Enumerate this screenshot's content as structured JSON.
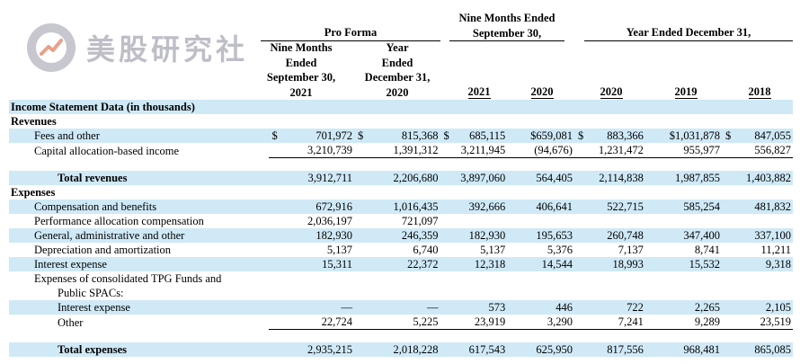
{
  "watermark": {
    "text": "美股研究社"
  },
  "headers": {
    "pro_forma": "Pro Forma",
    "nine_months_pf": [
      "Nine Months",
      "Ended",
      "September 30,",
      "2021"
    ],
    "year_pf": [
      "Year",
      "Ended",
      "December 31,",
      "2020"
    ],
    "nine_months_group": [
      "Nine Months Ended",
      "September 30,"
    ],
    "year_group": "Year Ended December 31,",
    "years": [
      "2021",
      "2020",
      "2020",
      "2019",
      "2018"
    ]
  },
  "table": {
    "section_title": "Income Statement Data (in thousands)",
    "revenues_label": "Revenues",
    "fees_label": "Fees and other",
    "fees_cur": [
      "$",
      "$",
      "$",
      "",
      "$",
      "",
      "$"
    ],
    "fees": [
      "701,972",
      "815,368",
      "685,115",
      "$659,081",
      "883,366",
      "$1,031,878",
      "847,055"
    ],
    "capital_label": "Capital allocation-based income",
    "capital": [
      "3,210,739",
      "1,391,312",
      "3,211,945",
      "(94,676)",
      "1,231,472",
      "955,977",
      "556,827"
    ],
    "total_rev_label": "Total revenues",
    "total_rev": [
      "3,912,711",
      "2,206,680",
      "3,897,060",
      "564,405",
      "2,114,838",
      "1,987,855",
      "1,403,882"
    ],
    "expenses_label": "Expenses",
    "rows": [
      {
        "label": "Compensation and benefits",
        "vals": [
          "672,916",
          "1,016,435",
          "392,666",
          "406,641",
          "522,715",
          "585,254",
          "481,832"
        ]
      },
      {
        "label": "Performance allocation compensation",
        "vals": [
          "2,036,197",
          "721,097",
          "",
          "",
          "",
          "",
          ""
        ]
      },
      {
        "label": "General, administrative and other",
        "vals": [
          "182,930",
          "246,359",
          "182,930",
          "195,653",
          "260,748",
          "347,400",
          "337,100"
        ]
      },
      {
        "label": "Depreciation and amortization",
        "vals": [
          "5,137",
          "6,740",
          "5,137",
          "5,376",
          "7,137",
          "8,741",
          "11,211"
        ]
      },
      {
        "label": "Interest expense",
        "vals": [
          "15,311",
          "22,372",
          "12,318",
          "14,544",
          "18,993",
          "15,532",
          "9,318"
        ]
      }
    ],
    "consolidated_label_1": "Expenses of consolidated TPG Funds and",
    "consolidated_label_2": "Public SPACs:",
    "sub_interest_label": "Interest expense",
    "sub_interest": [
      "—",
      "—",
      "573",
      "446",
      "722",
      "2,265",
      "2,105"
    ],
    "sub_other_label": "Other",
    "sub_other": [
      "22,724",
      "5,225",
      "23,919",
      "3,290",
      "7,241",
      "9,289",
      "23,519"
    ],
    "total_exp_label": "Total expenses",
    "total_exp": [
      "2,935,215",
      "2,018,228",
      "617,543",
      "625,950",
      "817,556",
      "968,481",
      "865,085"
    ]
  }
}
